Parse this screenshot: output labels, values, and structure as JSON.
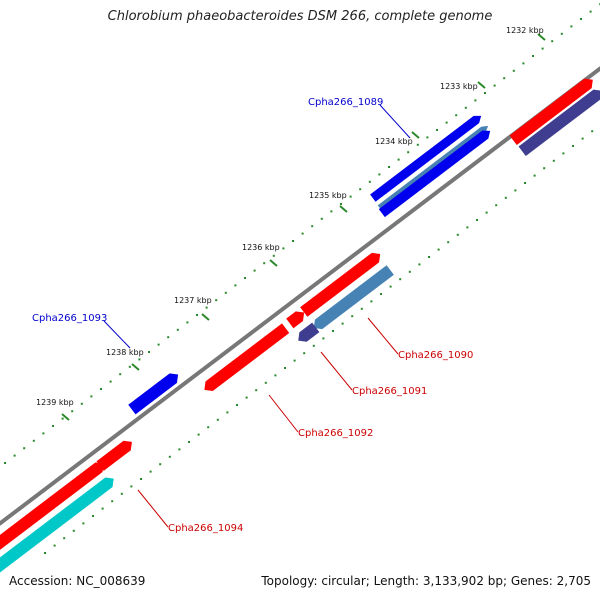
{
  "title": "Chlorobium phaeobacteroides DSM 266, complete genome",
  "footer": {
    "accession": "Accession: NC_008639",
    "summary": "Topology: circular; Length: 3,133,902 bp; Genes: 2,705"
  },
  "ticks": [
    {
      "label": "1232 kbp"
    },
    {
      "label": "1233 kbp"
    },
    {
      "label": "1234 kbp"
    },
    {
      "label": "1235 kbp"
    },
    {
      "label": "1236 kbp"
    },
    {
      "label": "1237 kbp"
    },
    {
      "label": "1238 kbp"
    },
    {
      "label": "1239 kbp"
    }
  ],
  "gene_labels": [
    {
      "id": "Cpha266_1089",
      "color": "#0000cc"
    },
    {
      "id": "Cpha266_1090",
      "color": "#cc0000"
    },
    {
      "id": "Cpha266_1091",
      "color": "#cc0000"
    },
    {
      "id": "Cpha266_1092",
      "color": "#cc0000"
    },
    {
      "id": "Cpha266_1093",
      "color": "#0000cc"
    },
    {
      "id": "Cpha266_1094",
      "color": "#cc0000"
    }
  ],
  "colors": {
    "backbone": "#777777",
    "tick_dots": "#2a8a2a",
    "gene_red": "#ff0000",
    "gene_blue": "#0000ee",
    "gene_steel": "#4682b4",
    "gene_navy": "#3f3d8f",
    "gene_cyan": "#00c8c8"
  }
}
